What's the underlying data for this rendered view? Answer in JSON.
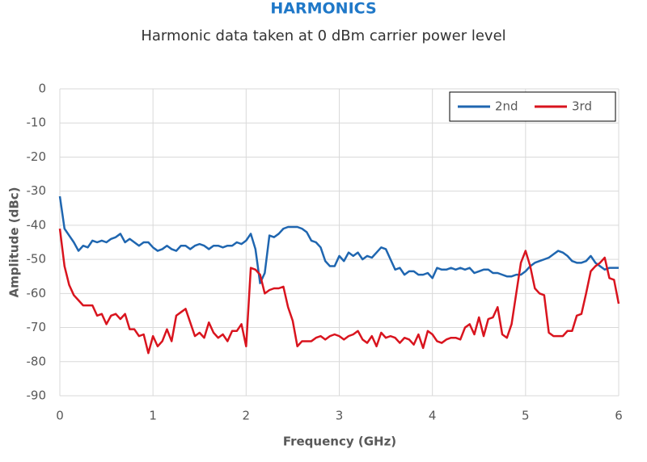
{
  "chart_data": {
    "type": "line",
    "title": "HARMONICS",
    "subtitle": "Harmonic data taken at 0 dBm carrier power level",
    "x_label": "Frequency (GHz)",
    "y_label": "Amplitude (dBc)",
    "x": [
      0,
      0.05,
      0.1,
      0.15,
      0.2,
      0.25,
      0.3,
      0.35,
      0.4,
      0.45,
      0.5,
      0.55,
      0.6,
      0.65,
      0.7,
      0.75,
      0.8,
      0.85,
      0.9,
      0.95,
      1,
      1.05,
      1.1,
      1.15,
      1.2,
      1.25,
      1.3,
      1.35,
      1.4,
      1.45,
      1.5,
      1.55,
      1.6,
      1.65,
      1.7,
      1.75,
      1.8,
      1.85,
      1.9,
      1.95,
      2,
      2.05,
      2.1,
      2.15,
      2.2,
      2.25,
      2.3,
      2.35,
      2.4,
      2.45,
      2.5,
      2.55,
      2.6,
      2.65,
      2.7,
      2.75,
      2.8,
      2.85,
      2.9,
      2.95,
      3,
      3.05,
      3.1,
      3.15,
      3.2,
      3.25,
      3.3,
      3.35,
      3.4,
      3.45,
      3.5,
      3.55,
      3.6,
      3.65,
      3.7,
      3.75,
      3.8,
      3.85,
      3.9,
      3.95,
      4,
      4.05,
      4.1,
      4.15,
      4.2,
      4.25,
      4.3,
      4.35,
      4.4,
      4.45,
      4.5,
      4.55,
      4.6,
      4.65,
      4.7,
      4.75,
      4.8,
      4.85,
      4.9,
      4.95,
      5,
      5.05,
      5.1,
      5.15,
      5.2,
      5.25,
      5.3,
      5.35,
      5.4,
      5.45,
      5.5,
      5.55,
      5.6,
      5.65,
      5.7,
      5.75,
      5.8,
      5.85,
      5.9,
      5.95,
      6
    ],
    "series": [
      {
        "name": "2nd",
        "color": "#1f66b0",
        "values": [
          -31.5,
          -41,
          -43,
          -45,
          -47.5,
          -46,
          -46.5,
          -44.5,
          -45,
          -44.5,
          -45,
          -44,
          -43.5,
          -42.5,
          -45,
          -44,
          -45,
          -46,
          -45,
          -45,
          -46.5,
          -47.5,
          -47,
          -46,
          -47,
          -47.5,
          -46,
          -46,
          -47,
          -46,
          -45.5,
          -46,
          -47,
          -46,
          -46,
          -46.5,
          -46,
          -46,
          -45,
          -45.5,
          -44.5,
          -42.5,
          -47,
          -57,
          -54,
          -43,
          -43.5,
          -42.5,
          -41,
          -40.5,
          -40.5,
          -40.5,
          -41,
          -42,
          -44.5,
          -45,
          -46.5,
          -50.5,
          -52,
          -52,
          -49,
          -50.5,
          -48,
          -49,
          -48,
          -50,
          -49,
          -49.5,
          -48,
          -46.5,
          -47,
          -50,
          -53,
          -52.5,
          -54.5,
          -53.5,
          -53.5,
          -54.5,
          -54.5,
          -54,
          -55.5,
          -52.5,
          -53,
          -53,
          -52.5,
          -53,
          -52.5,
          -53,
          -52.5,
          -54,
          -53.5,
          -53,
          -53,
          -54,
          -54,
          -54.5,
          -55,
          -55,
          -54.5,
          -54.5,
          -53.5,
          -52,
          -51,
          -50.5,
          -50,
          -49.5,
          -48.5,
          -47.5,
          -48,
          -49,
          -50.5,
          -51,
          -51,
          -50.5,
          -49,
          -51,
          -52,
          -53,
          -52.5,
          -52.5,
          -52.5
        ]
      },
      {
        "name": "3rd",
        "color": "#d9141e",
        "values": [
          -41,
          -52,
          -57.5,
          -60.5,
          -62,
          -63.5,
          -63.5,
          -63.5,
          -66.5,
          -66,
          -69,
          -66.5,
          -66,
          -67.5,
          -66,
          -70.5,
          -70.5,
          -72.5,
          -72,
          -77.5,
          -72.5,
          -75.5,
          -74,
          -70.5,
          -74,
          -66.5,
          -65.5,
          -64.5,
          -68.5,
          -72.5,
          -71.5,
          -73,
          -68.5,
          -71.5,
          -73,
          -72,
          -74,
          -71,
          -71,
          -69,
          -75.5,
          -52.5,
          -53,
          -54.5,
          -60,
          -59,
          -58.5,
          -58.5,
          -58,
          -64,
          -68,
          -75.5,
          -74,
          -74,
          -74,
          -73,
          -72.5,
          -73.5,
          -72.5,
          -72,
          -72.5,
          -73.5,
          -72.5,
          -72,
          -71,
          -73.5,
          -74.5,
          -72.5,
          -75.5,
          -71.5,
          -73,
          -72.5,
          -73,
          -74.5,
          -73,
          -73.5,
          -75,
          -72,
          -76,
          -71,
          -72,
          -74,
          -74.5,
          -73.5,
          -73,
          -73,
          -73.5,
          -70,
          -69,
          -72,
          -67,
          -72.5,
          -67.5,
          -67,
          -64,
          -72,
          -73,
          -69,
          -60,
          -51,
          -47.5,
          -52,
          -58.5,
          -60,
          -60.5,
          -71.5,
          -72.5,
          -72.5,
          -72.5,
          -71,
          -71,
          -66.5,
          -66,
          -60,
          -53.5,
          -52,
          -51,
          -49.5,
          -55.5,
          -56,
          -63
        ]
      }
    ],
    "xlim": [
      0,
      6
    ],
    "xticks": [
      0,
      1,
      2,
      3,
      4,
      5,
      6
    ],
    "ylim": [
      -90,
      0
    ],
    "yticks": [
      -90,
      -80,
      -70,
      -60,
      -50,
      -40,
      -30,
      -20,
      -10,
      0
    ],
    "grid": true,
    "legend": "top-right"
  }
}
